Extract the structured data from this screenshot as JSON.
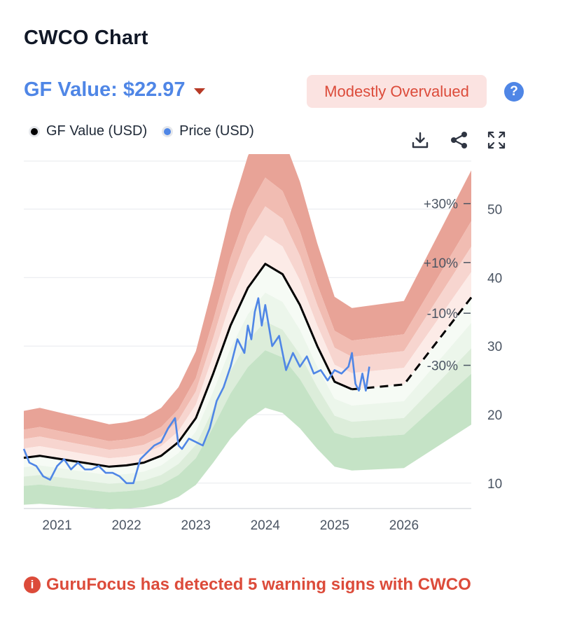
{
  "header": {
    "title": "CWCO Chart",
    "gf_value": "GF Value: $22.97",
    "valuation_badge": "Modestly Overvalued",
    "help_glyph": "?"
  },
  "legend": {
    "gf_value_label": "GF Value (USD)",
    "price_label": "Price (USD)"
  },
  "toolbar": {
    "download_icon": "download-icon",
    "share_icon": "share-icon",
    "fullscreen_icon": "fullscreen-icon"
  },
  "warning": {
    "icon_glyph": "i",
    "text": "GuruFocus has detected 5 warning signs with CWCO"
  },
  "colors": {
    "gf_line": "#000000",
    "price_line": "#4f86e6",
    "band_red": "#e8a397",
    "band_green": "#c5e3c6",
    "badge_text": "#dc4b3a"
  },
  "chart_data": {
    "type": "line",
    "title": "CWCO Chart",
    "x_ticks": [
      "2021",
      "2022",
      "2023",
      "2024",
      "2025",
      "2026"
    ],
    "y_ticks": [
      10,
      20,
      30,
      40,
      50
    ],
    "ylim": [
      6.3,
      57
    ],
    "xlim": [
      2020.52,
      2026.97
    ],
    "band_labels": [
      "+30%",
      "+10%",
      "-10%",
      "-30%"
    ],
    "band_multipliers": [
      1.3,
      1.2,
      1.1,
      1.0,
      0.9,
      0.8,
      0.7
    ],
    "gf_value": {
      "name": "GF Value (USD)",
      "x": [
        2020.52,
        2020.75,
        2021.0,
        2021.25,
        2021.5,
        2021.75,
        2022.0,
        2022.25,
        2022.5,
        2022.75,
        2023.0,
        2023.25,
        2023.5,
        2023.75,
        2024.0,
        2024.25,
        2024.5,
        2024.75,
        2025.0,
        2025.25
      ],
      "values": [
        13.7,
        14.0,
        13.6,
        13.2,
        12.8,
        12.4,
        12.6,
        13.0,
        14.0,
        16.0,
        19.5,
        26.0,
        33.0,
        38.5,
        42.0,
        40.5,
        36.0,
        30.0,
        24.8,
        23.7
      ]
    },
    "gf_value_forecast": {
      "x": [
        2025.25,
        2026.0,
        2026.97
      ],
      "values": [
        23.7,
        24.4,
        37.1
      ]
    },
    "price": {
      "name": "Price (USD)",
      "x": [
        2020.52,
        2020.6,
        2020.7,
        2020.8,
        2020.9,
        2021.0,
        2021.1,
        2021.2,
        2021.3,
        2021.4,
        2021.5,
        2021.6,
        2021.7,
        2021.8,
        2021.9,
        2022.0,
        2022.1,
        2022.2,
        2022.3,
        2022.4,
        2022.5,
        2022.6,
        2022.7,
        2022.75,
        2022.8,
        2022.9,
        2023.0,
        2023.1,
        2023.2,
        2023.3,
        2023.4,
        2023.5,
        2023.6,
        2023.7,
        2023.75,
        2023.8,
        2023.85,
        2023.9,
        2023.95,
        2024.0,
        2024.1,
        2024.2,
        2024.3,
        2024.4,
        2024.5,
        2024.6,
        2024.7,
        2024.8,
        2024.9,
        2025.0,
        2025.1,
        2025.2,
        2025.25,
        2025.3,
        2025.35,
        2025.4,
        2025.45,
        2025.5
      ],
      "values": [
        15.0,
        13.0,
        12.5,
        11.0,
        10.5,
        12.5,
        13.5,
        12.0,
        13.0,
        12.0,
        12.0,
        12.5,
        11.5,
        11.5,
        11.0,
        10.0,
        10.0,
        13.5,
        14.5,
        15.5,
        16.0,
        18.0,
        19.5,
        15.5,
        15.0,
        16.5,
        16.0,
        15.5,
        18.0,
        22.0,
        24.0,
        27.0,
        31.0,
        29.0,
        33.0,
        31.0,
        35.0,
        37.0,
        33.0,
        36.0,
        30.0,
        31.5,
        26.5,
        29.0,
        27.0,
        28.5,
        26.0,
        26.5,
        25.0,
        26.5,
        26.0,
        27.0,
        29.0,
        24.5,
        23.5,
        26.0,
        23.5,
        27.0
      ]
    }
  }
}
